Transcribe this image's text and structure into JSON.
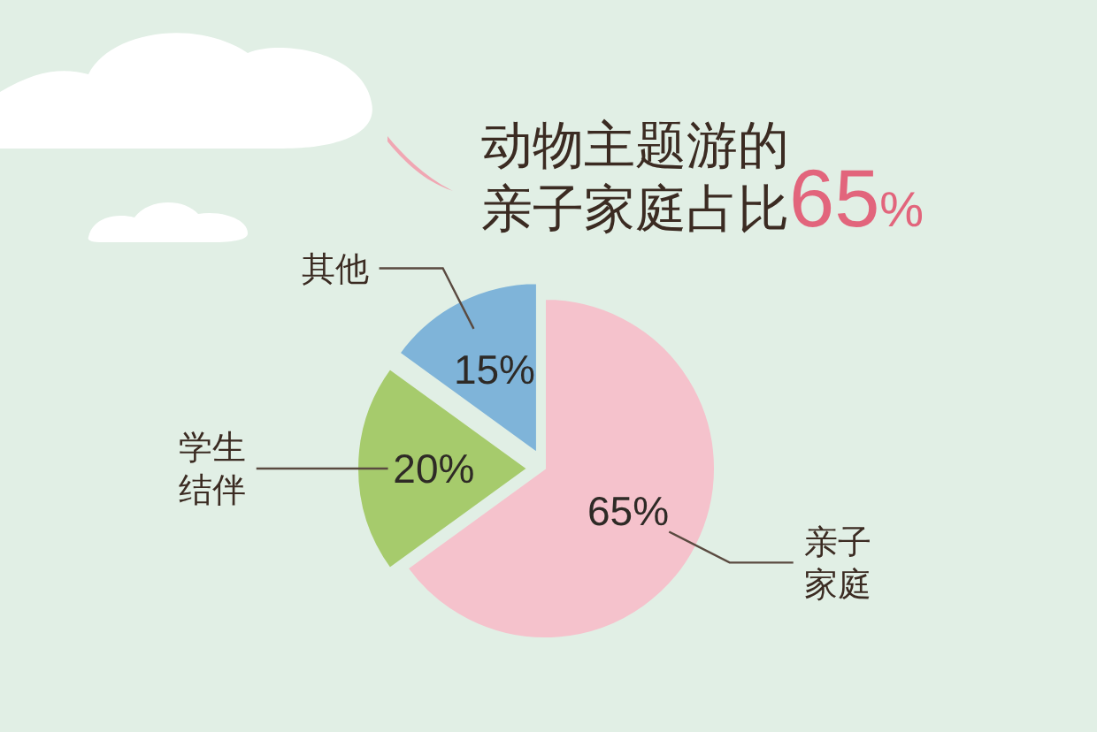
{
  "chart_data": {
    "type": "pie",
    "title": "动物主题游的亲子家庭占比65%",
    "categories": [
      "亲子家庭",
      "学生结伴",
      "其他"
    ],
    "values": [
      65,
      20,
      15
    ],
    "value_labels": [
      "65%",
      "20%",
      "15%"
    ],
    "colors": [
      "#f5c2cc",
      "#a6cb6c",
      "#7fb4d9"
    ]
  }
}
